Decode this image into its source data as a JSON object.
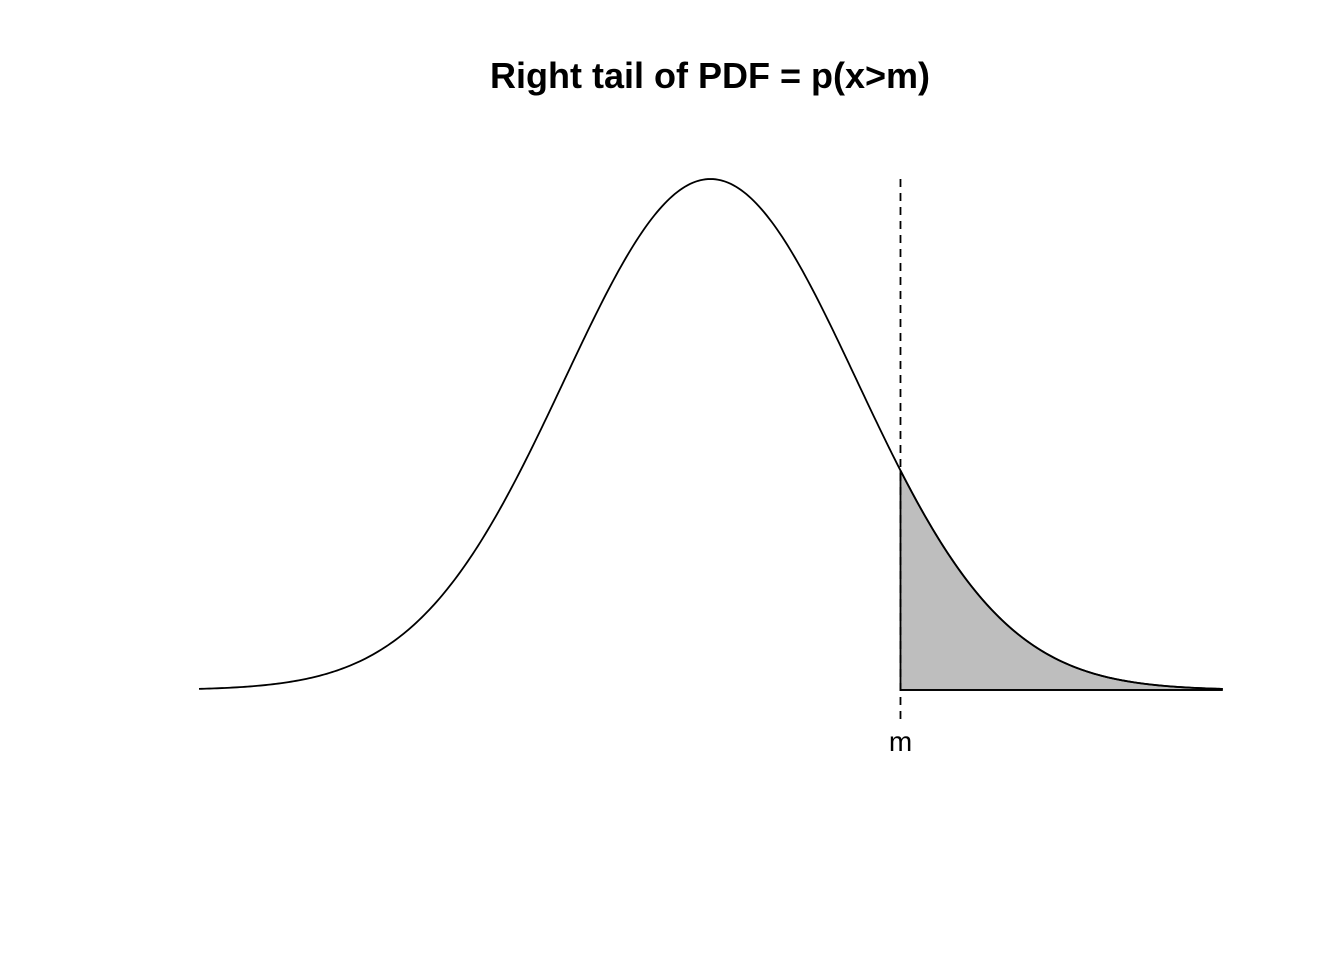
{
  "chart_data": {
    "type": "area",
    "title": "Right tail of PDF = p(x>m)",
    "xlabel": "",
    "ylabel": "",
    "distribution": "normal",
    "mean": 0,
    "sd": 1,
    "xlim": [
      -3.5,
      3.5
    ],
    "threshold": {
      "label": "m",
      "value": 1.3
    },
    "shaded_region": "x > m",
    "colors": {
      "curve": "#000000",
      "shade": "#bebebe",
      "threshold_line": "#000000"
    },
    "grid": false,
    "axes_visible": false
  }
}
